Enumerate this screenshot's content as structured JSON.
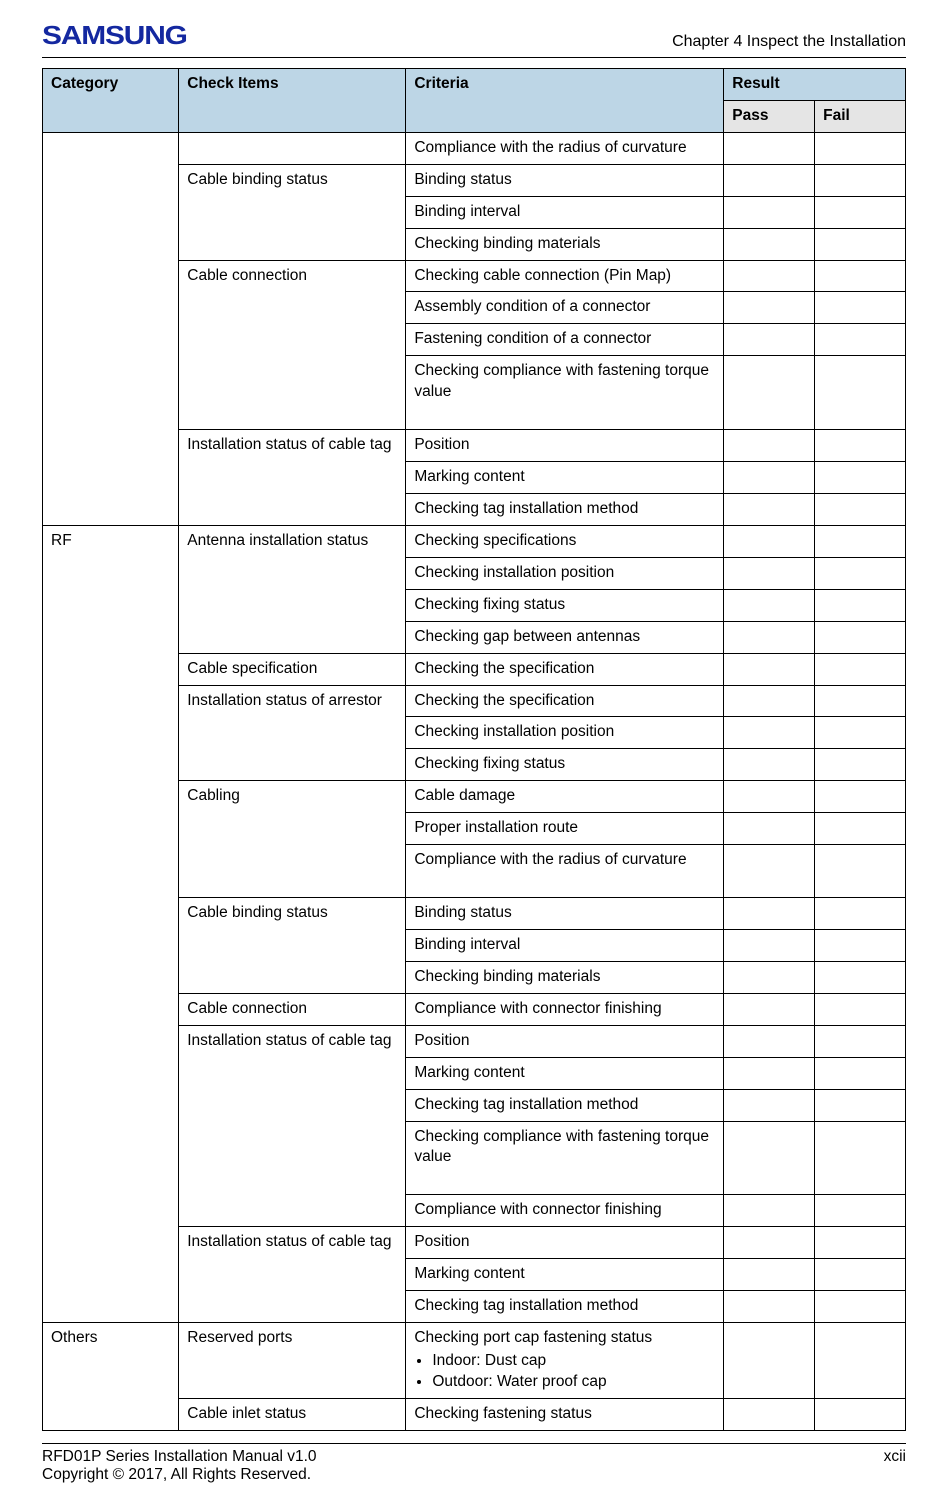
{
  "header": {
    "logo_text": "SAMSUNG",
    "chapter": "Chapter 4 Inspect the Installation"
  },
  "table": {
    "headers": {
      "category": "Category",
      "check_items": "Check Items",
      "criteria": "Criteria",
      "result": "Result",
      "pass": "Pass",
      "fail": "Fail"
    }
  },
  "rows": [
    {
      "category": "",
      "check": "",
      "criteria": "Compliance with the radius of curvature"
    },
    {
      "check": "Cable binding status",
      "criteria": "Binding status"
    },
    {
      "criteria": "Binding interval"
    },
    {
      "criteria": "Checking binding materials"
    },
    {
      "check": "Cable connection",
      "criteria": "Checking cable connection (Pin Map)"
    },
    {
      "criteria": "Assembly condition of a connector"
    },
    {
      "criteria": "Fastening condition of a connector"
    },
    {
      "criteria": "Checking compliance with fastening torque value",
      "tall": true
    },
    {
      "check": "Installation status of cable tag",
      "criteria": "Position"
    },
    {
      "criteria": "Marking content"
    },
    {
      "criteria": "Checking tag installation method"
    },
    {
      "category": "RF",
      "check": "Antenna installation status",
      "criteria": "Checking specifications"
    },
    {
      "criteria": "Checking installation position"
    },
    {
      "criteria": "Checking fixing status"
    },
    {
      "criteria": "Checking gap between antennas"
    },
    {
      "check": "Cable specification",
      "criteria": "Checking the specification"
    },
    {
      "check": "Installation status of arrestor",
      "criteria": "Checking the specification"
    },
    {
      "criteria": "Checking installation position"
    },
    {
      "criteria": "Checking fixing status"
    },
    {
      "check": "Cabling",
      "criteria": "Cable damage"
    },
    {
      "criteria": "Proper installation route"
    },
    {
      "criteria": "Compliance with the radius of curvature",
      "tall": true
    },
    {
      "check": "Cable binding status",
      "criteria": "Binding status"
    },
    {
      "criteria": "Binding interval"
    },
    {
      "criteria": "Checking binding materials"
    },
    {
      "check": "Cable connection",
      "criteria": "Compliance with connector finishing"
    },
    {
      "check": "Installation status of cable tag",
      "criteria": "Position"
    },
    {
      "criteria": "Marking content"
    },
    {
      "criteria": "Checking tag installation method"
    },
    {
      "criteria": "Checking compliance with fastening torque value",
      "tall": true
    },
    {
      "criteria": "Compliance with connector finishing"
    },
    {
      "check": "Installation status of cable tag",
      "criteria": "Position"
    },
    {
      "criteria": "Marking content"
    },
    {
      "criteria": "Checking tag installation method"
    },
    {
      "category": "Others",
      "check": "Reserved ports",
      "criteria_list_title": "Checking port cap fastening status",
      "criteria_list": [
        "Indoor: Dust cap",
        "Outdoor: Water proof cap"
      ]
    },
    {
      "check": "Cable inlet status",
      "criteria": "Checking fastening status"
    }
  ],
  "row_spans": {
    "category": [
      11,
      23,
      2
    ],
    "check": [
      1,
      3,
      4,
      3,
      4,
      1,
      3,
      3,
      3,
      1,
      5,
      3,
      1,
      1
    ]
  },
  "footer": {
    "line1": "RFD01P Series Installation Manual   v1.0",
    "line2": "Copyright © 2017, All Rights Reserved.",
    "page": "xcii"
  },
  "style": {
    "header_bg": "#bdd6e6",
    "sub_bg": "#e5e5e5",
    "border_color": "#000000",
    "logo_color": "#1428a0",
    "font_size_cell": 15.5,
    "font_size_header": 15.5
  }
}
